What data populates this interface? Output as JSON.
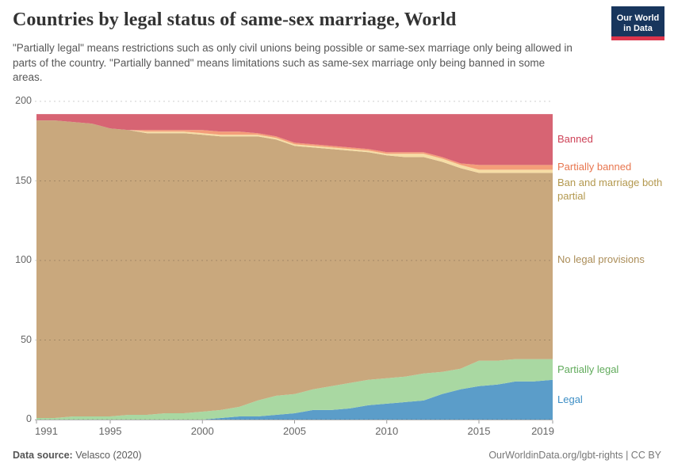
{
  "header": {
    "title": "Countries by legal status of same-sex marriage, World",
    "subtitle": "\"Partially legal\" means restrictions such as only civil unions being possible or same-sex marriage only being allowed in parts of the country. \"Partially banned\" means limitations such as same-sex marriage only being banned in some areas.",
    "logo_line1": "Our World",
    "logo_line2": "in Data",
    "logo_bg": "#18365d",
    "logo_bar": "#dc354c"
  },
  "chart_data": {
    "type": "area",
    "stacked": true,
    "title": "Countries by legal status of same-sex marriage, World",
    "xlabel": "",
    "ylabel": "",
    "ylim": [
      0,
      200
    ],
    "grid": true,
    "legend_position": "right-edge-labels",
    "x": [
      1991,
      1992,
      1993,
      1994,
      1995,
      1996,
      1997,
      1998,
      1999,
      2000,
      2001,
      2002,
      2003,
      2004,
      2005,
      2006,
      2007,
      2008,
      2009,
      2010,
      2011,
      2012,
      2013,
      2014,
      2015,
      2016,
      2017,
      2018,
      2019
    ],
    "x_ticks": [
      1991,
      1995,
      2000,
      2005,
      2010,
      2015,
      2019
    ],
    "y_ticks": [
      0,
      50,
      100,
      150,
      200
    ],
    "series": [
      {
        "name": "legal",
        "label": "Legal",
        "fill": "#5b9dc9",
        "label_color": "#3d8ec5",
        "values": [
          0,
          0,
          0,
          0,
          0,
          0,
          0,
          0,
          0,
          0,
          1,
          2,
          2,
          3,
          4,
          6,
          6,
          7,
          9,
          10,
          11,
          12,
          16,
          19,
          21,
          22,
          24,
          24,
          25
        ]
      },
      {
        "name": "partially-legal",
        "label": "Partially legal",
        "fill": "#a9d8a2",
        "label_color": "#61ab5c",
        "values": [
          1,
          1,
          2,
          2,
          2,
          3,
          3,
          4,
          4,
          5,
          5,
          6,
          10,
          12,
          12,
          13,
          15,
          16,
          16,
          16,
          16,
          17,
          14,
          13,
          16,
          15,
          14,
          14,
          13
        ]
      },
      {
        "name": "no-legal-provisions",
        "label": "No legal provisions",
        "fill": "#c9a87d",
        "label_color": "#ab8d58",
        "values": [
          187,
          187,
          185,
          184,
          181,
          179,
          177,
          176,
          176,
          174,
          172,
          170,
          166,
          161,
          156,
          152,
          149,
          146,
          143,
          140,
          138,
          136,
          132,
          126,
          118,
          118,
          117,
          117,
          117
        ]
      },
      {
        "name": "ban-and-marriage-both-partial",
        "label": "Ban and marriage both partial",
        "fill": "#f6dda5",
        "label_color": "#b3984e",
        "values": [
          0,
          0,
          0,
          0,
          0,
          0,
          1,
          1,
          1,
          1,
          1,
          1,
          1,
          1,
          1,
          1,
          1,
          1,
          1,
          1,
          2,
          2,
          2,
          2,
          2,
          2,
          2,
          2,
          2
        ]
      },
      {
        "name": "partially-banned",
        "label": "Partially banned",
        "fill": "#f49e79",
        "label_color": "#e8764f",
        "values": [
          0,
          0,
          0,
          0,
          0,
          0,
          1,
          1,
          1,
          2,
          2,
          2,
          1,
          1,
          1,
          1,
          1,
          1,
          1,
          1,
          1,
          1,
          1,
          1,
          3,
          3,
          3,
          3,
          3
        ]
      },
      {
        "name": "banned",
        "label": "Banned",
        "fill": "#d76473",
        "label_color": "#ce4257",
        "values": [
          4,
          4,
          5,
          6,
          9,
          10,
          10,
          10,
          10,
          10,
          11,
          11,
          12,
          14,
          18,
          19,
          20,
          21,
          22,
          24,
          24,
          24,
          27,
          31,
          32,
          32,
          32,
          32,
          32
        ]
      }
    ]
  },
  "footer": {
    "datasource_label": "Data source:",
    "datasource_value": " Velasco (2020)",
    "credit": "OurWorldinData.org/lgbt-rights | CC BY"
  }
}
